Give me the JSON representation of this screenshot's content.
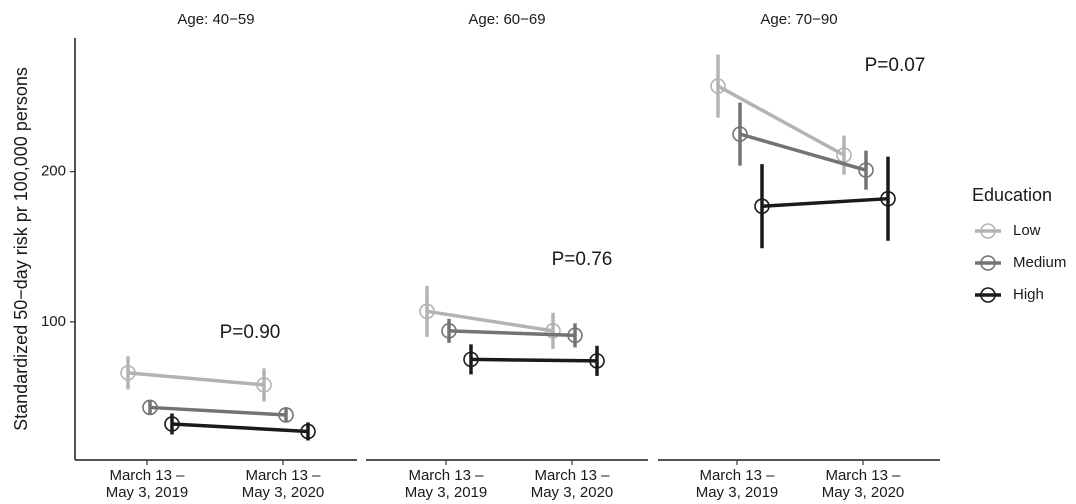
{
  "chart_data": {
    "type": "line",
    "ylabel": "Standardized 50−day risk pr 100,000 persons",
    "ylim": [
      8,
      289
    ],
    "yticks": [
      100,
      200
    ],
    "categories": [
      [
        "March 13 –",
        "May 3, 2019"
      ],
      [
        "March 13 –",
        "May 3, 2020"
      ]
    ],
    "legend_title": "Education",
    "series": [
      {
        "name": "Low",
        "color": "#b3b3b3"
      },
      {
        "name": "Medium",
        "color": "#737373"
      },
      {
        "name": "High",
        "color": "#1a1a1a"
      }
    ],
    "facets": [
      {
        "title": "Age: 40−59",
        "annotation": "P=0.90",
        "values": [
          [
            66,
            58
          ],
          [
            43,
            38
          ],
          [
            32,
            27
          ]
        ],
        "errors": [
          [
            11,
            11
          ],
          [
            5,
            5
          ],
          [
            7,
            6
          ]
        ]
      },
      {
        "title": "Age: 60−69",
        "annotation": "P=0.76",
        "values": [
          [
            107,
            94
          ],
          [
            94,
            91
          ],
          [
            75,
            74
          ]
        ],
        "errors": [
          [
            17,
            12
          ],
          [
            8,
            8
          ],
          [
            10,
            10
          ]
        ]
      },
      {
        "title": "Age: 70−90",
        "annotation": "P=0.07",
        "values": [
          [
            257,
            211
          ],
          [
            225,
            201
          ],
          [
            177,
            182
          ]
        ],
        "errors": [
          [
            21,
            13
          ],
          [
            21,
            13
          ],
          [
            28,
            28
          ]
        ]
      }
    ]
  }
}
